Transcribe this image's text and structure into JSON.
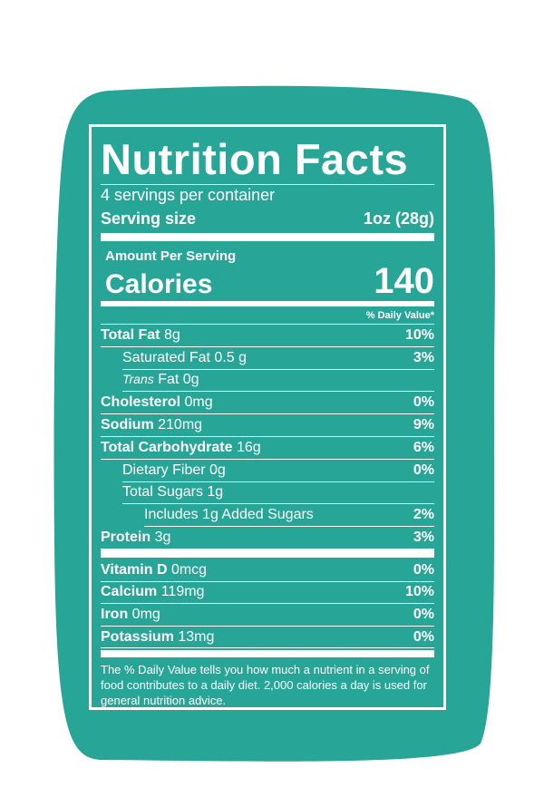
{
  "header": {
    "title": "Nutrition Facts",
    "servings": "4 servings per container",
    "serving_size_label": "Serving size",
    "serving_size": "1oz (28g)"
  },
  "calories": {
    "amount_label": "Amount Per Serving",
    "label": "Calories",
    "value": "140"
  },
  "daily_value_heading": "% Daily Value*",
  "nutrients": [
    {
      "name": "Total Fat",
      "amount": "8g",
      "dv": "10%"
    },
    {
      "name": "Saturated Fat",
      "amount": "0.5 g",
      "dv": "3%"
    },
    {
      "name": "Trans",
      "amount": "Fat 0g"
    },
    {
      "name": "Cholesterol",
      "amount": "0mg",
      "dv": "0%"
    },
    {
      "name": "Sodium",
      "amount": "210mg",
      "dv": "9%"
    },
    {
      "name": "Total Carbohydrate",
      "amount": "16g",
      "dv": "6%"
    },
    {
      "name": "Dietary Fiber",
      "amount": "0g",
      "dv": "0%"
    },
    {
      "name": "Total Sugars",
      "amount": "1g"
    },
    {
      "name": "Includes 1g Added Sugars",
      "dv": "2%"
    },
    {
      "name": "Protein",
      "amount": "3g",
      "dv": "3%"
    }
  ],
  "minerals": [
    {
      "name": "Vitamin D",
      "amount": "0mcg",
      "dv": "0%"
    },
    {
      "name": "Calcium",
      "amount": "119mg",
      "dv": "10%"
    },
    {
      "name": "Iron",
      "amount": "0mg",
      "dv": "0%"
    },
    {
      "name": "Potassium",
      "amount": "13mg",
      "dv": "0%"
    }
  ],
  "footnote": "The % Daily Value tells you how much a nutrient in a serving of food contributes to a daily diet. 2,000 calories a day is used for general nutrition advice."
}
